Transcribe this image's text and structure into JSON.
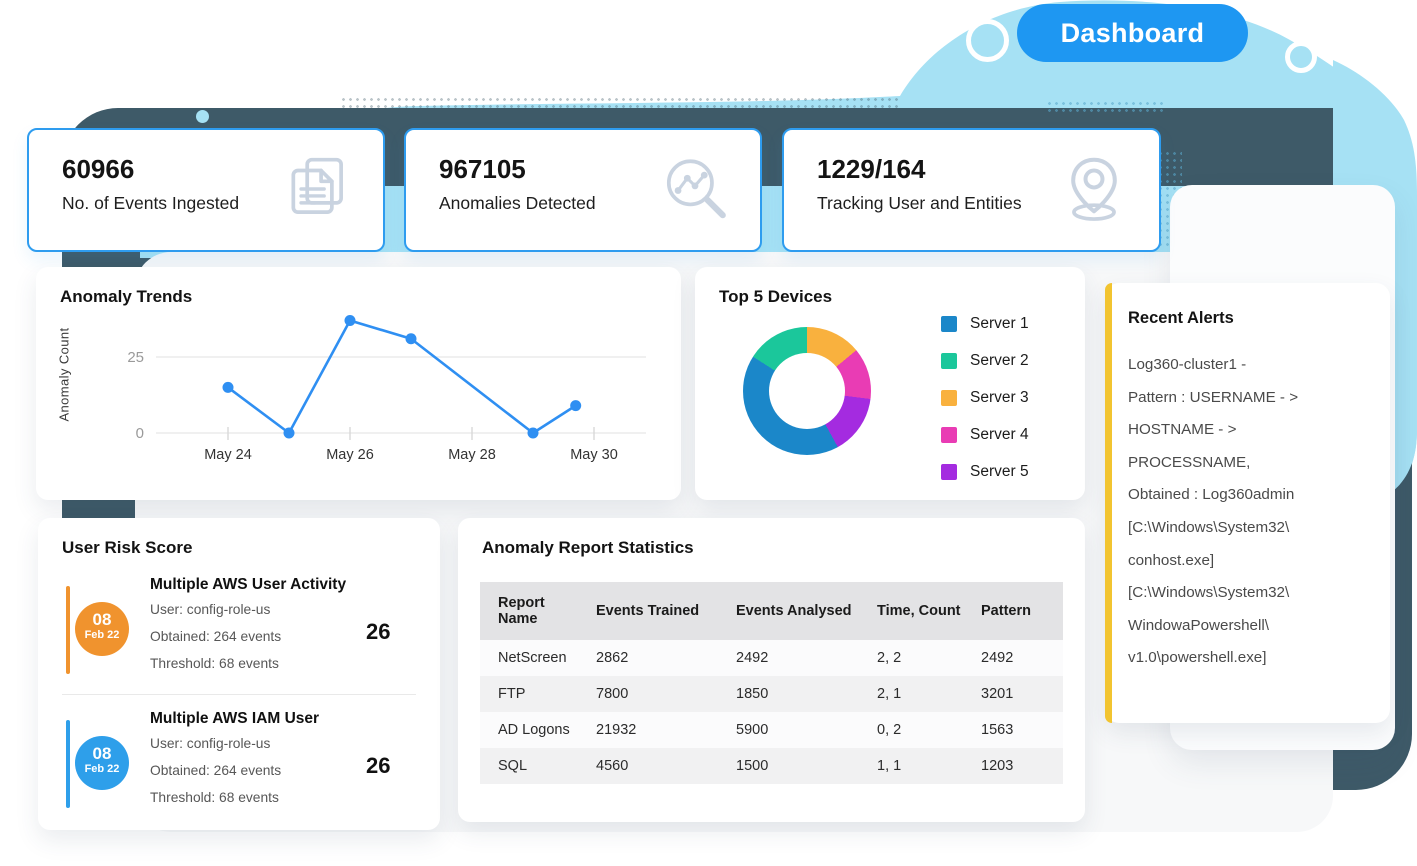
{
  "badge": {
    "label": "Dashboard"
  },
  "colors": {
    "badge_bg": "#1E97F2",
    "stat_card_border": "#2E9CEF",
    "alert_accent": "#F2C430",
    "slate_bg": "#3E5A68",
    "blob_blue": "#A6E1F4",
    "panel_bg": "#F7F8F9"
  },
  "stat_cards": [
    {
      "value": "60966",
      "label": "No. of Events Ingested",
      "icon": "documents-icon"
    },
    {
      "value": "967105",
      "label": "Anomalies Detected",
      "icon": "anomaly-search-icon"
    },
    {
      "value": "1229/164",
      "label": "Tracking User and Entities",
      "icon": "location-pin-icon"
    }
  ],
  "recent_alerts": {
    "title": "Recent Alerts",
    "lines": [
      "Log360-cluster1 -",
      "Pattern : USERNAME - >",
      "HOSTNAME - >",
      "PROCESSNAME,",
      "Obtained : Log360admin",
      "[C:\\Windows\\System32\\",
      "conhost.exe]",
      "[C:\\Windows\\System32\\",
      "WindowaPowershell\\",
      "v1.0\\powershell.exe]"
    ]
  },
  "user_risk": {
    "title": "User Risk Score",
    "entries": [
      {
        "day": "08",
        "month": "Feb 22",
        "accent": "#F0932E",
        "title": "Multiple AWS User Activity",
        "line_user": "User: config-role-us",
        "line_obtained": "Obtained: 264 events",
        "line_threshold": "Threshold: 68 events",
        "score": "26"
      },
      {
        "day": "08",
        "month": "Feb 22",
        "accent": "#2E9FEA",
        "title": "Multiple AWS IAM User",
        "line_user": "User: config-role-us",
        "line_obtained": "Obtained: 264 events",
        "line_threshold": "Threshold: 68 events",
        "score": "26"
      }
    ]
  },
  "report_stats": {
    "title": "Anomaly Report Statistics",
    "columns": [
      "Report Name",
      "Events Trained",
      "Events Analysed",
      "Time, Count",
      "Pattern"
    ],
    "rows": [
      {
        "cells": [
          "NetScreen",
          "2862",
          "2492",
          "2, 2",
          "2492"
        ]
      },
      {
        "cells": [
          "FTP",
          "7800",
          "1850",
          "2, 1",
          "3201"
        ]
      },
      {
        "cells": [
          "AD Logons",
          "21932",
          "5900",
          "0, 2",
          "1563"
        ]
      },
      {
        "cells": [
          "SQL",
          "4560",
          "1500",
          "1, 1",
          "1203"
        ]
      }
    ]
  },
  "chart_data": [
    {
      "type": "line",
      "title": "Anomaly Trends",
      "xlabel": "",
      "ylabel": "Anomaly Count",
      "x": [
        "May 24",
        "May 25",
        "May 26",
        "May 27",
        "May 29",
        "May 30"
      ],
      "x_days": [
        24,
        25,
        26,
        27,
        29,
        29.7
      ],
      "values": [
        15,
        0,
        37,
        31,
        0,
        9
      ],
      "x_ticks": [
        {
          "label": "May 24",
          "day": 24
        },
        {
          "label": "May 26",
          "day": 26
        },
        {
          "label": "May 28",
          "day": 28
        },
        {
          "label": "May 30",
          "day": 30
        }
      ],
      "y_ticks": [
        0,
        25
      ],
      "ylim": [
        0,
        40
      ],
      "grid": true,
      "line_color": "#2F8FF2"
    },
    {
      "type": "donut",
      "title": "Top 5 Devices",
      "legend_position": "right",
      "series": [
        {
          "name": "Server 1",
          "value": 42,
          "color": "#1B87C9"
        },
        {
          "name": "Server 2",
          "value": 16,
          "color": "#1BC79B"
        },
        {
          "name": "Server 3",
          "value": 14,
          "color": "#F9B13E"
        },
        {
          "name": "Server 4",
          "value": 13,
          "color": "#E93CB4"
        },
        {
          "name": "Server 5",
          "value": 15,
          "color": "#A42BE0"
        }
      ],
      "draw_order_from_top_clockwise": [
        "Server 3",
        "Server 4",
        "Server 5",
        "Server 1",
        "Server 2"
      ]
    }
  ]
}
